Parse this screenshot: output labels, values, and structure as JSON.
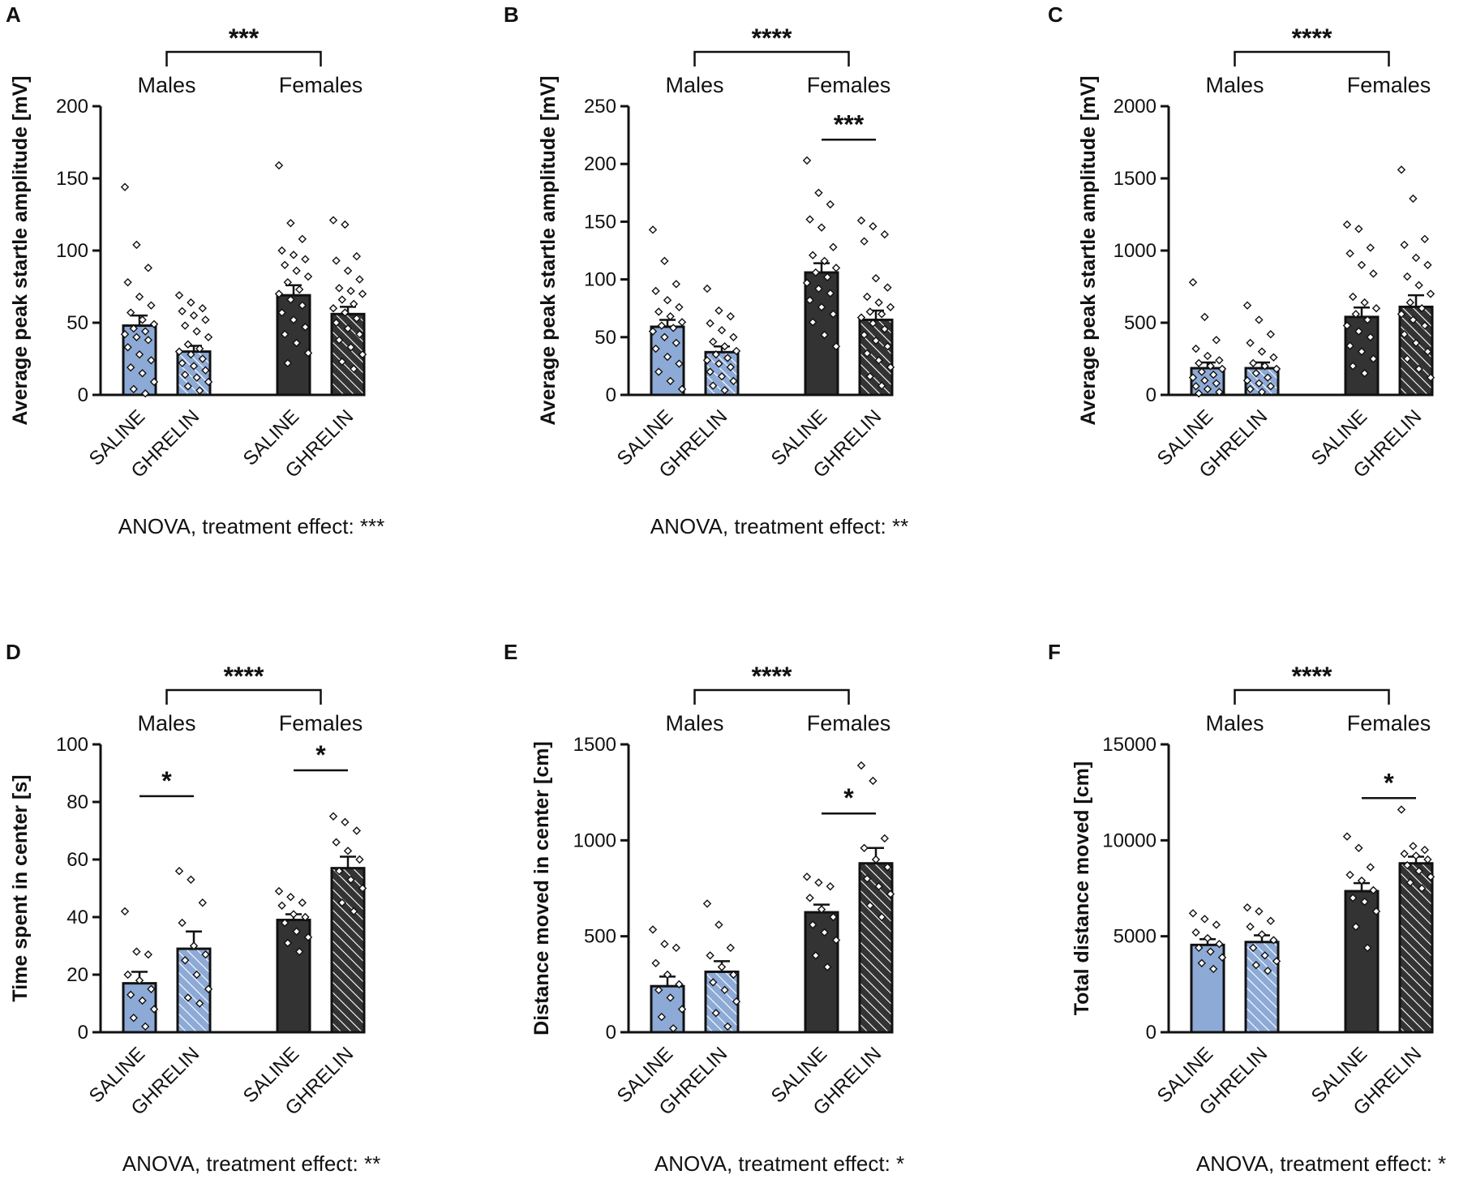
{
  "colors": {
    "blue": "#8DAAD6",
    "dark": "#333333",
    "ink": "#111111",
    "marker_fill": "#ffffff"
  },
  "groups": [
    "Males",
    "Females"
  ],
  "categories": [
    "SALINE",
    "GHRELIN",
    "SALINE",
    "GHRELIN"
  ],
  "chart_data": [
    {
      "type": "bar",
      "panel": "A",
      "ylabel": "Average peak startle amplitude [mV]",
      "ylim": [
        0,
        200
      ],
      "yticks": [
        0,
        50,
        100,
        150,
        200
      ],
      "categories": [
        "SALINE",
        "GHRELIN",
        "SALINE",
        "GHRELIN"
      ],
      "groups": [
        "Males",
        "Females"
      ],
      "values": [
        48,
        30,
        69,
        56
      ],
      "sem": [
        7,
        4,
        7,
        5
      ],
      "points": [
        [
          144,
          104,
          88,
          78,
          68,
          62,
          57,
          52,
          49,
          46,
          44,
          42,
          40,
          38,
          33,
          28,
          24,
          19,
          15,
          9,
          4,
          1
        ],
        [
          69,
          64,
          60,
          58,
          55,
          52,
          48,
          44,
          40,
          35,
          32,
          30,
          28,
          25,
          22,
          20,
          17,
          14,
          12,
          9,
          6,
          3
        ],
        [
          159,
          119,
          108,
          100,
          97,
          94,
          90,
          86,
          82,
          78,
          73,
          70,
          66,
          62,
          57,
          52,
          47,
          42,
          36,
          29,
          22
        ],
        [
          121,
          118,
          96,
          93,
          86,
          80,
          74,
          72,
          70,
          66,
          63,
          60,
          57,
          53,
          50,
          46,
          42,
          38,
          33,
          28,
          23,
          18
        ]
      ],
      "comparisons": [
        {
          "label": "***",
          "between": "groups"
        }
      ],
      "footer": "ANOVA, treatment effect: ***"
    },
    {
      "type": "bar",
      "panel": "B",
      "ylabel": "Average peak startle amplitude [mV]",
      "ylim": [
        0,
        250
      ],
      "yticks": [
        0,
        50,
        100,
        150,
        200,
        250
      ],
      "categories": [
        "SALINE",
        "GHRELIN",
        "SALINE",
        "GHRELIN"
      ],
      "groups": [
        "Males",
        "Females"
      ],
      "values": [
        59,
        37,
        106,
        65
      ],
      "sem": [
        6,
        5,
        8,
        8
      ],
      "points": [
        [
          143,
          116,
          96,
          90,
          82,
          76,
          72,
          68,
          63,
          60,
          58,
          55,
          50,
          45,
          40,
          33,
          27,
          20,
          12,
          5
        ],
        [
          92,
          73,
          68,
          62,
          56,
          50,
          46,
          42,
          38,
          35,
          32,
          30,
          27,
          24,
          20,
          16,
          12,
          8,
          4
        ],
        [
          203,
          175,
          165,
          152,
          145,
          128,
          121,
          116,
          110,
          106,
          102,
          97,
          92,
          88,
          82,
          76,
          70,
          63,
          52,
          42
        ],
        [
          151,
          146,
          139,
          133,
          101,
          93,
          85,
          80,
          76,
          72,
          70,
          67,
          62,
          57,
          52,
          47,
          42,
          36,
          30,
          24,
          16,
          8
        ]
      ],
      "comparisons": [
        {
          "label": "****",
          "between": "groups"
        },
        {
          "label": "***",
          "between": "Females SALINE vs GHRELIN"
        }
      ],
      "footer": "ANOVA, treatment effect: **"
    },
    {
      "type": "bar",
      "panel": "C",
      "ylabel": "Average peak startle amplitude [mV]",
      "ylim": [
        0,
        2000
      ],
      "yticks": [
        0,
        500,
        1000,
        1500,
        2000
      ],
      "categories": [
        "SALINE",
        "GHRELIN",
        "SALINE",
        "GHRELIN"
      ],
      "groups": [
        "Males",
        "Females"
      ],
      "values": [
        185,
        185,
        540,
        610
      ],
      "sem": [
        40,
        40,
        65,
        80
      ],
      "points": [
        [
          780,
          540,
          380,
          320,
          270,
          240,
          220,
          200,
          180,
          160,
          140,
          120,
          100,
          80,
          60,
          40,
          20,
          10
        ],
        [
          620,
          520,
          420,
          360,
          300,
          260,
          220,
          200,
          180,
          150,
          120,
          100,
          80,
          60,
          40,
          20
        ],
        [
          1180,
          1150,
          1020,
          980,
          900,
          840,
          680,
          640,
          600,
          560,
          520,
          480,
          440,
          400,
          340,
          300,
          250,
          200,
          150
        ],
        [
          1560,
          1360,
          1080,
          1040,
          950,
          900,
          820,
          760,
          700,
          640,
          600,
          560,
          520,
          480,
          420,
          360,
          300,
          250,
          180,
          120
        ]
      ],
      "comparisons": [
        {
          "label": "****",
          "between": "groups"
        }
      ],
      "footer": ""
    },
    {
      "type": "bar",
      "panel": "D",
      "ylabel": "Time spent in center [s]",
      "ylim": [
        0,
        100
      ],
      "yticks": [
        0,
        20,
        40,
        60,
        80,
        100
      ],
      "categories": [
        "SALINE",
        "GHRELIN",
        "SALINE",
        "GHRELIN"
      ],
      "groups": [
        "Males",
        "Females"
      ],
      "values": [
        17,
        29,
        39,
        57
      ],
      "sem": [
        4,
        6,
        2,
        4
      ],
      "points": [
        [
          42,
          28,
          27,
          20,
          18,
          15,
          13,
          11,
          8,
          5,
          2
        ],
        [
          56,
          53,
          45,
          38,
          30,
          27,
          25,
          20,
          15,
          12,
          10
        ],
        [
          49,
          47,
          45,
          44,
          41,
          40,
          38,
          35,
          33,
          31,
          28
        ],
        [
          75,
          73,
          70,
          66,
          63,
          60,
          56,
          53,
          50,
          45,
          42
        ]
      ],
      "comparisons": [
        {
          "label": "****",
          "between": "groups"
        },
        {
          "label": "*",
          "between": "Males SALINE vs GHRELIN"
        },
        {
          "label": "*",
          "between": "Females SALINE vs GHRELIN"
        }
      ],
      "footer": "ANOVA, treatment effect: **"
    },
    {
      "type": "bar",
      "panel": "E",
      "ylabel": "Distance moved in center [cm]",
      "ylim": [
        0,
        1500
      ],
      "yticks": [
        0,
        500,
        1000,
        1500
      ],
      "categories": [
        "SALINE",
        "GHRELIN",
        "SALINE",
        "GHRELIN"
      ],
      "groups": [
        "Males",
        "Females"
      ],
      "values": [
        240,
        315,
        625,
        880
      ],
      "sem": [
        50,
        55,
        40,
        80
      ],
      "points": [
        [
          535,
          460,
          440,
          360,
          300,
          250,
          220,
          180,
          120,
          80,
          20
        ],
        [
          670,
          560,
          440,
          400,
          340,
          300,
          260,
          220,
          160,
          100,
          30
        ],
        [
          810,
          780,
          760,
          700,
          640,
          600,
          560,
          520,
          480,
          400,
          340
        ],
        [
          1390,
          1310,
          1010,
          960,
          900,
          860,
          800,
          760,
          720,
          660,
          600
        ]
      ],
      "comparisons": [
        {
          "label": "****",
          "between": "groups"
        },
        {
          "label": "*",
          "between": "Females SALINE vs GHRELIN"
        }
      ],
      "footer": "ANOVA, treatment effect: *"
    },
    {
      "type": "bar",
      "panel": "F",
      "ylabel": "Total distance moved [cm]",
      "ylim": [
        0,
        15000
      ],
      "yticks": [
        0,
        5000,
        10000,
        15000
      ],
      "categories": [
        "SALINE",
        "GHRELIN",
        "SALINE",
        "GHRELIN"
      ],
      "groups": [
        "Males",
        "Females"
      ],
      "values": [
        4550,
        4700,
        7350,
        8800
      ],
      "sem": [
        300,
        350,
        420,
        350
      ],
      "points": [
        [
          6200,
          5900,
          5600,
          5200,
          4900,
          4600,
          4400,
          4200,
          3900,
          3600,
          3300
        ],
        [
          6500,
          6300,
          5800,
          5500,
          5100,
          4800,
          4400,
          4000,
          3700,
          3500,
          3200
        ],
        [
          10200,
          9600,
          8600,
          8200,
          7900,
          7400,
          7000,
          6800,
          6300,
          5500,
          4400
        ],
        [
          11600,
          9700,
          9500,
          9300,
          9200,
          9000,
          8700,
          8400,
          8100,
          7800,
          7500
        ]
      ],
      "comparisons": [
        {
          "label": "****",
          "between": "groups"
        },
        {
          "label": "*",
          "between": "Females SALINE vs GHRELIN"
        }
      ],
      "footer": "ANOVA, treatment effect: *"
    }
  ]
}
